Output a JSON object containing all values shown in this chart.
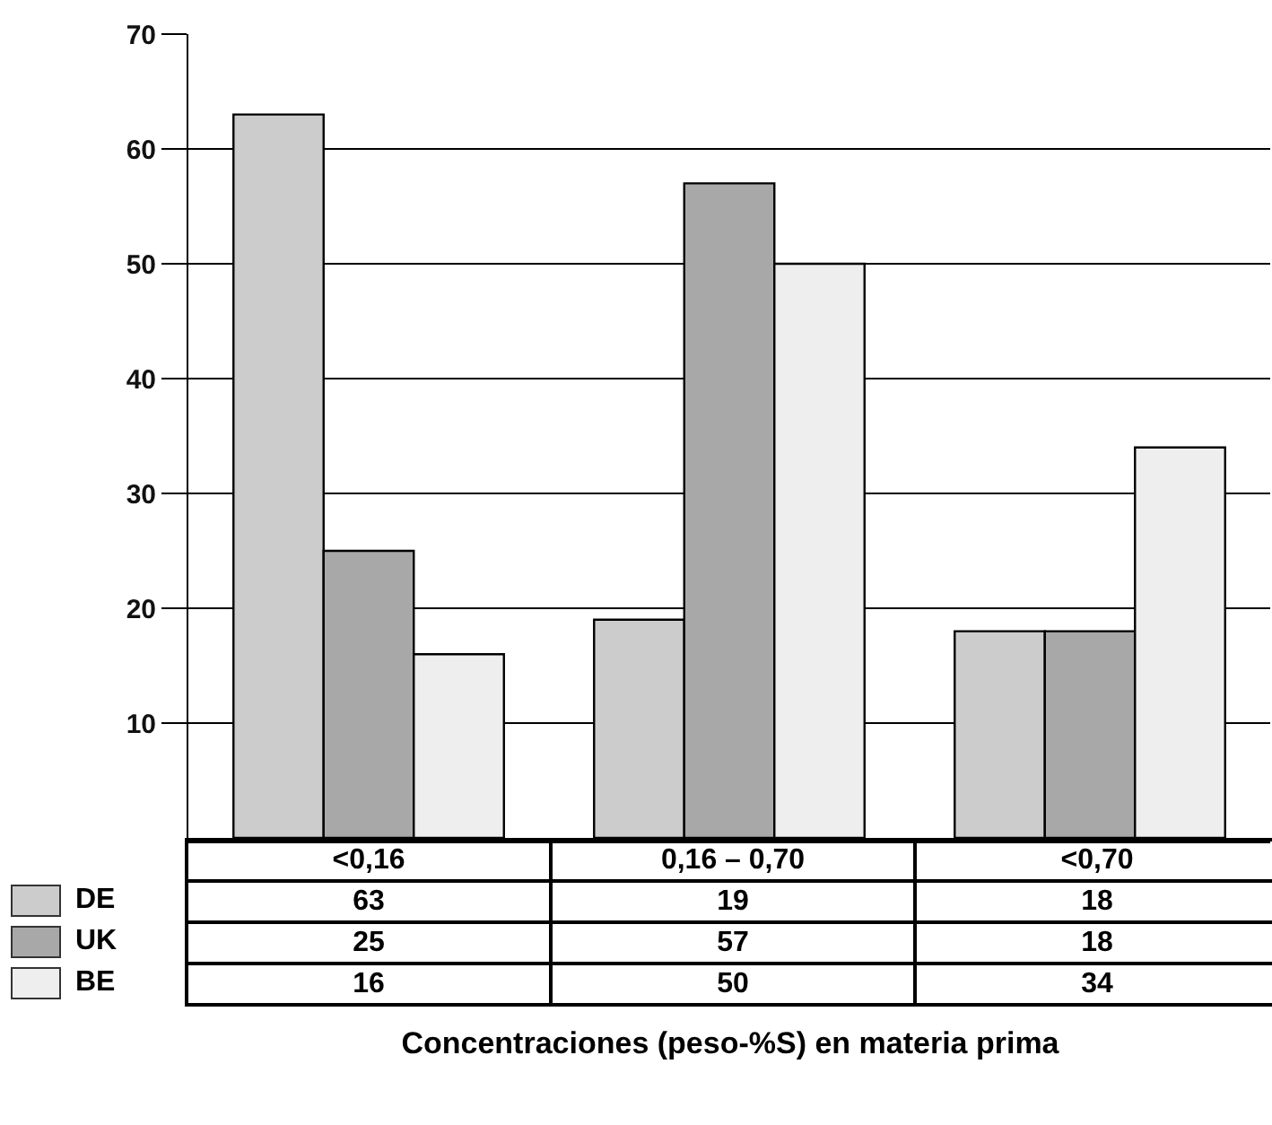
{
  "chart_data": {
    "type": "bar",
    "xlabel": "Concentraciones (peso-%S) en materia prima",
    "categories": [
      "<0,16",
      "0,16 – 0,70",
      "<0,70"
    ],
    "series": [
      {
        "name": "DE",
        "color": "#cccccc",
        "values": [
          63,
          19,
          18
        ]
      },
      {
        "name": "UK",
        "color": "#a8a8a8",
        "values": [
          25,
          57,
          18
        ]
      },
      {
        "name": "BE",
        "color": "#eeeeee",
        "values": [
          16,
          50,
          34
        ]
      }
    ],
    "ylim": [
      0,
      70
    ],
    "yticks": [
      10,
      20,
      30,
      40,
      50,
      60,
      70
    ],
    "grid": "y",
    "legend": "bottom left",
    "data_labels": true
  }
}
